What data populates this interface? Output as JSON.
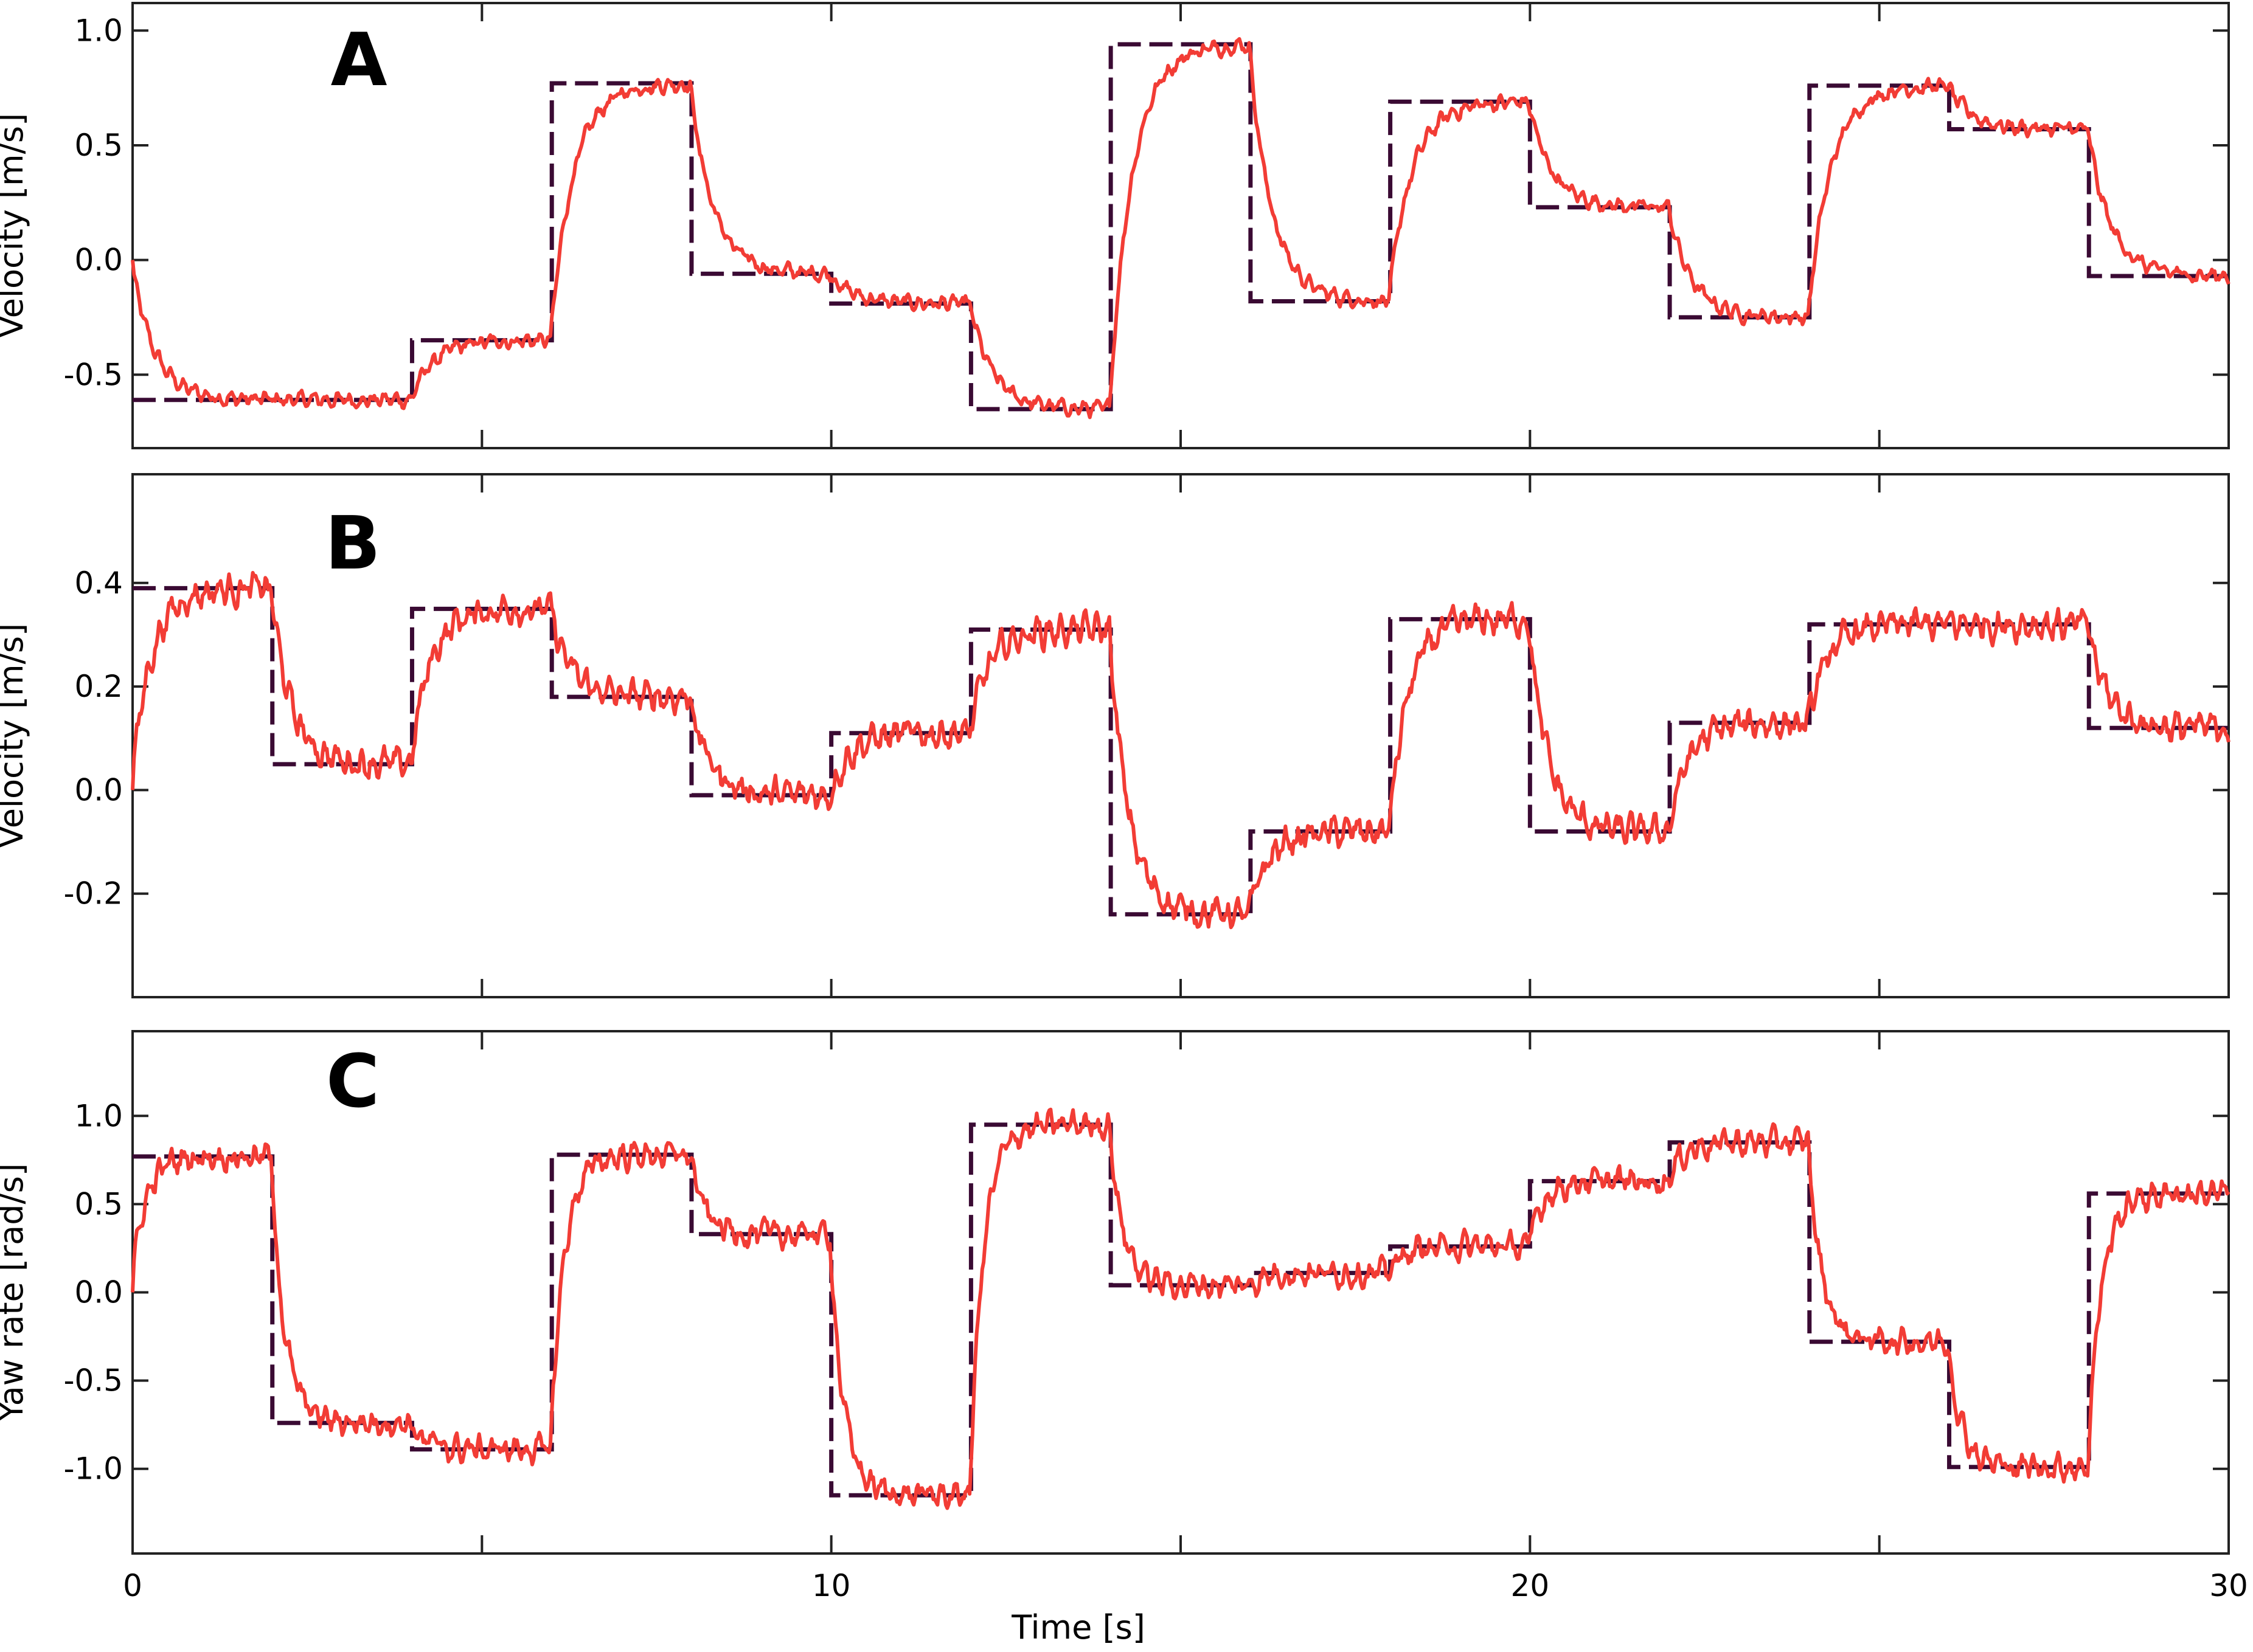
{
  "colors": {
    "measured": "#f23c35",
    "command": "#3a0a33"
  },
  "x_axis": {
    "label": "Time [s]",
    "ticks": [
      0,
      10,
      20,
      30
    ],
    "minor_ticks": [
      5,
      15,
      25
    ]
  },
  "chart_data": [
    {
      "type": "line",
      "panel": "A",
      "ylabel": "Velocity [m/s]",
      "xlim": [
        0,
        30
      ],
      "ylim": [
        -0.82,
        1.12
      ],
      "yticks": [
        1.0,
        0.5,
        0.0,
        -0.5
      ],
      "ytick_labels": [
        "1.0",
        "0.5",
        "0.0",
        "-0.5"
      ],
      "command_steps": [
        {
          "t0": 0,
          "t1": 4,
          "v": -0.61
        },
        {
          "t0": 4,
          "t1": 6,
          "v": -0.35
        },
        {
          "t0": 6,
          "t1": 8,
          "v": 0.77
        },
        {
          "t0": 8,
          "t1": 10,
          "v": -0.06
        },
        {
          "t0": 10,
          "t1": 12,
          "v": -0.19
        },
        {
          "t0": 12,
          "t1": 14,
          "v": -0.65
        },
        {
          "t0": 14,
          "t1": 16,
          "v": 0.94
        },
        {
          "t0": 16,
          "t1": 18,
          "v": -0.18
        },
        {
          "t0": 18,
          "t1": 20,
          "v": 0.69
        },
        {
          "t0": 20,
          "t1": 22,
          "v": 0.23
        },
        {
          "t0": 22,
          "t1": 24,
          "v": -0.25
        },
        {
          "t0": 24,
          "t1": 26,
          "v": 0.76
        },
        {
          "t0": 26,
          "t1": 28,
          "v": 0.57
        },
        {
          "t0": 28,
          "t1": 30,
          "v": -0.07
        }
      ],
      "measured": {
        "start": 0.0,
        "tau": 0.33,
        "noise": 0.04
      }
    },
    {
      "type": "line",
      "panel": "B",
      "ylabel": "Velocity [m/s]",
      "xlim": [
        0,
        30
      ],
      "ylim": [
        -0.4,
        0.61
      ],
      "yticks": [
        0.4,
        0.2,
        0.0,
        -0.2
      ],
      "ytick_labels": [
        "0.4",
        "0.2",
        "0.0",
        "-0.2"
      ],
      "command_steps": [
        {
          "t0": 0,
          "t1": 2,
          "v": 0.39
        },
        {
          "t0": 2,
          "t1": 4,
          "v": 0.05
        },
        {
          "t0": 4,
          "t1": 6,
          "v": 0.35
        },
        {
          "t0": 6,
          "t1": 8,
          "v": 0.18
        },
        {
          "t0": 8,
          "t1": 10,
          "v": -0.01
        },
        {
          "t0": 10,
          "t1": 12,
          "v": 0.11
        },
        {
          "t0": 12,
          "t1": 14,
          "v": 0.31
        },
        {
          "t0": 14,
          "t1": 16,
          "v": -0.24
        },
        {
          "t0": 16,
          "t1": 18,
          "v": -0.08
        },
        {
          "t0": 18,
          "t1": 20,
          "v": 0.33
        },
        {
          "t0": 20,
          "t1": 22,
          "v": -0.08
        },
        {
          "t0": 22,
          "t1": 24,
          "v": 0.13
        },
        {
          "t0": 24,
          "t1": 26,
          "v": 0.32
        },
        {
          "t0": 26,
          "t1": 28,
          "v": 0.32
        },
        {
          "t0": 28,
          "t1": 30,
          "v": 0.12
        }
      ],
      "measured": {
        "start": 0.0,
        "tau": 0.28,
        "noise": 0.035
      }
    },
    {
      "type": "line",
      "panel": "C",
      "ylabel": "Yaw rate [rad/s]",
      "xlim": [
        0,
        30
      ],
      "ylim": [
        -1.48,
        1.48
      ],
      "yticks": [
        1.0,
        0.5,
        0.0,
        -0.5,
        -1.0
      ],
      "ytick_labels": [
        "1.0",
        "0.5",
        "0.0",
        "-0.5",
        "-1.0"
      ],
      "command_steps": [
        {
          "t0": 0,
          "t1": 2,
          "v": 0.77
        },
        {
          "t0": 2,
          "t1": 4,
          "v": -0.74
        },
        {
          "t0": 4,
          "t1": 6,
          "v": -0.89
        },
        {
          "t0": 6,
          "t1": 8,
          "v": 0.78
        },
        {
          "t0": 8,
          "t1": 10,
          "v": 0.33
        },
        {
          "t0": 10,
          "t1": 12,
          "v": -1.15
        },
        {
          "t0": 12,
          "t1": 14,
          "v": 0.95
        },
        {
          "t0": 14,
          "t1": 16,
          "v": 0.04
        },
        {
          "t0": 16,
          "t1": 18,
          "v": 0.11
        },
        {
          "t0": 18,
          "t1": 20,
          "v": 0.26
        },
        {
          "t0": 20,
          "t1": 22,
          "v": 0.63
        },
        {
          "t0": 22,
          "t1": 24,
          "v": 0.85
        },
        {
          "t0": 24,
          "t1": 26,
          "v": -0.28
        },
        {
          "t0": 26,
          "t1": 28,
          "v": -0.99
        },
        {
          "t0": 28,
          "t1": 30,
          "v": 0.56
        }
      ],
      "measured": {
        "start": 0.0,
        "tau": 0.2,
        "noise": 0.09
      }
    }
  ]
}
